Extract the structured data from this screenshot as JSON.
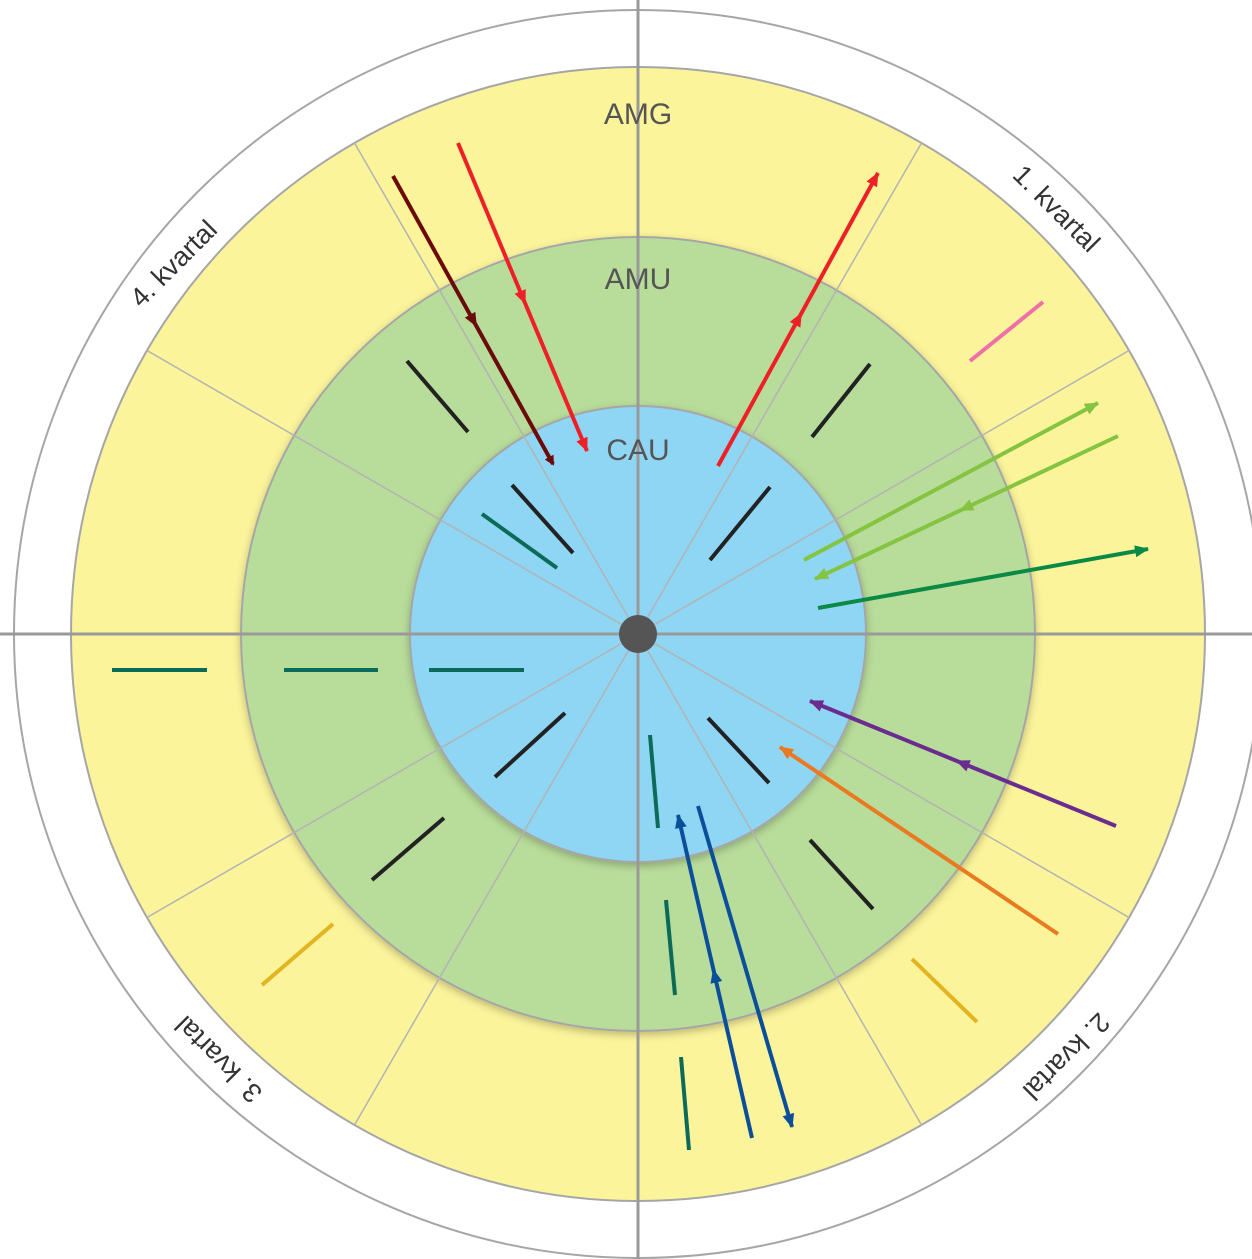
{
  "diagram": {
    "rings": [
      {
        "key": "outer",
        "color": "#ffffff"
      },
      {
        "key": "amg",
        "label": "AMG",
        "color": "#fbf49b"
      },
      {
        "key": "amu",
        "label": "AMU",
        "color": "#b8dc9a"
      },
      {
        "key": "cau",
        "label": "CAU",
        "color": "#8fd6f5"
      }
    ],
    "quarters": [
      {
        "label": "1. kvartal"
      },
      {
        "label": "2. kvartal"
      },
      {
        "label": "3. kvartal"
      },
      {
        "label": "4. kvartal"
      }
    ],
    "colors": {
      "axis": "#9a9a9a",
      "spoke": "#b3b3b3",
      "ring_stroke": "#a6a6a6",
      "center_dot": "#555555",
      "dark_red": "#6b0a0a",
      "red": "#ee2027",
      "pink": "#ef6fa8",
      "black": "#222222",
      "light_green": "#84c440",
      "dark_green": "#0a8a45",
      "teal": "#0b6b58",
      "purple": "#6a2c8f",
      "orange": "#ea7a22",
      "blue": "#0b4f9a",
      "gold": "#e4b320"
    }
  }
}
